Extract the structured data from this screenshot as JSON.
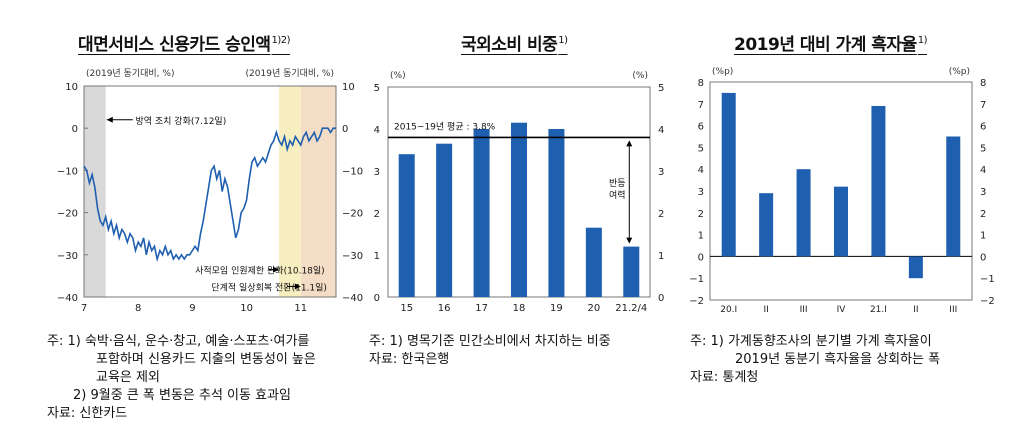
{
  "chart_data": [
    {
      "type": "line",
      "title": "대면서비스 신용카드 승인액",
      "title_sup": "1)2)",
      "ylabel_left": "(2019년 동기대비, %)",
      "ylabel_right": "(2019년 동기대비, %)",
      "ylim": [
        -40,
        10
      ],
      "yticks": [
        "10",
        "0",
        "−10",
        "−20",
        "−30",
        "−40"
      ],
      "right_yticks": [
        "10",
        "0",
        "−10",
        "−20",
        "−30",
        "−40"
      ],
      "xticks": [
        "7",
        "8",
        "9",
        "10",
        "11"
      ],
      "annotations": [
        "방역 조치 강화(7.12일)",
        "사적모임 인원제한 완화(10.18일)",
        "단계적 일상회복 전환(11.1일)"
      ],
      "series": [
        {
          "x": [
            0.0,
            0.05,
            0.1,
            0.15,
            0.2,
            0.25,
            0.3,
            0.35,
            0.4,
            0.45,
            0.5,
            0.55,
            0.6,
            0.65,
            0.7,
            0.75,
            0.8,
            0.85,
            0.9,
            0.95,
            1.0,
            1.05,
            1.1,
            1.15,
            1.2,
            1.25,
            1.3,
            1.35,
            1.4,
            1.45,
            1.5,
            1.55,
            1.6,
            1.65,
            1.7,
            1.75,
            1.8,
            1.85,
            1.9,
            1.95,
            2.0,
            2.05,
            2.1,
            2.15,
            2.2,
            2.25,
            2.3,
            2.35,
            2.4,
            2.45,
            2.5,
            2.55,
            2.6,
            2.65,
            2.7,
            2.75,
            2.8,
            2.85,
            2.9,
            2.95,
            3.0,
            3.05,
            3.1,
            3.15,
            3.2,
            3.25,
            3.3,
            3.35,
            3.4,
            3.45,
            3.5,
            3.55,
            3.6,
            3.65,
            3.7,
            3.75,
            3.8,
            3.85,
            3.9,
            3.95,
            4.0,
            4.05,
            4.1,
            4.15,
            4.2,
            4.25,
            4.3,
            4.35,
            4.4,
            4.45,
            4.5,
            4.55,
            4.6,
            4.65
          ],
          "values": [
            -9,
            -10,
            -13,
            -11,
            -14,
            -19,
            -22,
            -23,
            -21,
            -24,
            -22,
            -25,
            -23,
            -26,
            -24,
            -25,
            -27,
            -25,
            -26,
            -29,
            -27,
            -28,
            -26,
            -30,
            -27,
            -29,
            -28,
            -31,
            -29,
            -30,
            -28,
            -30,
            -29,
            -31,
            -30,
            -31,
            -30,
            -31,
            -30,
            -30,
            -29,
            -28,
            -29,
            -25,
            -22,
            -18,
            -14,
            -10,
            -9,
            -12,
            -10,
            -15,
            -12,
            -14,
            -18,
            -22,
            -26,
            -24,
            -20,
            -19,
            -17,
            -12,
            -8,
            -7,
            -9,
            -8,
            -7,
            -8,
            -6,
            -4,
            -3,
            -1,
            -3,
            -4,
            -2,
            -5,
            -3,
            -4,
            -2,
            -3,
            -4,
            -2,
            -1,
            -3,
            -2,
            -1,
            -3,
            -2,
            0,
            0,
            0,
            -1,
            0,
            0
          ]
        }
      ]
    },
    {
      "type": "bar",
      "title": "국외소비 비중",
      "title_sup": "1)",
      "ylabel_left": "(%)",
      "ylabel_right": "(%)",
      "ylim": [
        0,
        5
      ],
      "yticks": [
        "5",
        "4",
        "3",
        "2",
        "1",
        "0"
      ],
      "right_yticks": [
        "5",
        "4",
        "3",
        "2",
        "1",
        "0"
      ],
      "categories": [
        "15",
        "16",
        "17",
        "18",
        "19",
        "20",
        "21.2/4"
      ],
      "values": [
        3.4,
        3.65,
        4.0,
        4.15,
        4.0,
        1.65,
        1.2
      ],
      "reference_value": 3.8,
      "reference_label": "2015~19년 평균 : 3.8%",
      "arrow_label": "반등 여력"
    },
    {
      "type": "bar",
      "title": "2019년 대비 가계 흑자율",
      "title_sup": "1)",
      "ylabel_left": "(%p)",
      "ylabel_right": "(%p)",
      "ylim": [
        -2,
        8
      ],
      "yticks": [
        "8",
        "7",
        "6",
        "5",
        "4",
        "3",
        "2",
        "1",
        "0",
        "−1",
        "−2"
      ],
      "right_yticks": [
        "8",
        "7",
        "6",
        "5",
        "4",
        "3",
        "2",
        "1",
        "0",
        "−1",
        "−2"
      ],
      "categories": [
        "20.I",
        "II",
        "III",
        "IV",
        "21.I",
        "II",
        "III"
      ],
      "values": [
        7.5,
        2.9,
        4.0,
        3.2,
        6.9,
        -1.0,
        5.5
      ]
    }
  ],
  "notes": {
    "left": [
      "주: 1) 숙박·음식, 운수·창고, 예술·스포츠·여가를",
      "포함하며 신용카드 지출의 변동성이 높은",
      "교육은 제외",
      "2) 9월중 큰 폭 변동은 추석 이동 효과임",
      "자료: 신한카드"
    ],
    "mid": [
      "주: 1) 명목기준 민간소비에서 차지하는 비중",
      "자료: 한국은행"
    ],
    "right": [
      "주: 1) 가계동향조사의 분기별 가계 흑자율이",
      "2019년 동분기 흑자율을 상회하는 폭",
      "자료: 통계청"
    ]
  },
  "colors": {
    "bar": "#1f5fb0",
    "line": "#1f5fb0",
    "shade_gray": "#d9d9d9",
    "shade_yellow": "#f7efc0",
    "shade_orange": "#f4ddc6"
  }
}
